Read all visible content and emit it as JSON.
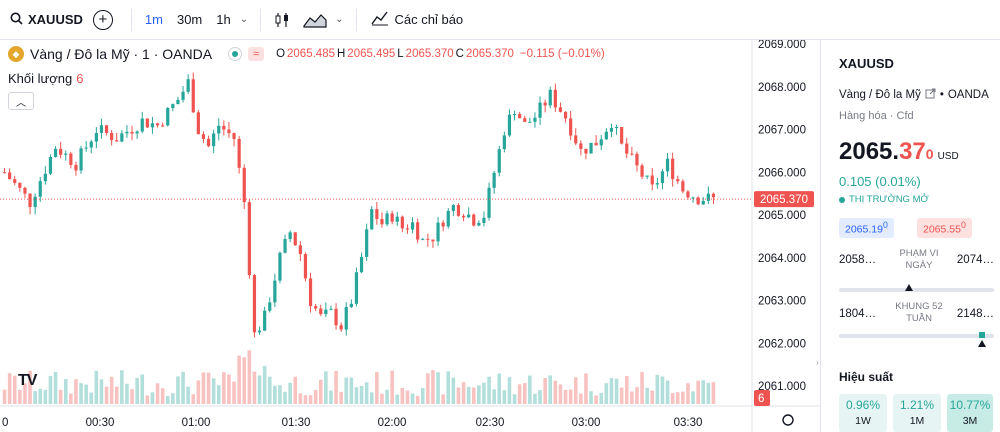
{
  "toolbar": {
    "symbol": "XAUUSD",
    "intervals": [
      "1m",
      "30m",
      "1h"
    ],
    "active_interval": "1m",
    "indicators_label": "Các chỉ báo"
  },
  "legend": {
    "title": "Vàng / Đô la Mỹ · 1 · OANDA",
    "o_key": "O",
    "o_val": "2065.485",
    "h_key": "H",
    "h_val": "2065.495",
    "l_key": "L",
    "l_val": "2065.370",
    "c_key": "C",
    "c_val": "2065.370",
    "change": "−0.115 (−0.01%)",
    "volume_label": "Khối lượng",
    "volume_value": "6"
  },
  "chart_data": {
    "type": "candlestick",
    "y_ticks": [
      "2069.000",
      "2068.000",
      "2067.000",
      "2066.000",
      "2065.000",
      "2064.000",
      "2063.000",
      "2062.000",
      "2061.000"
    ],
    "ylim": [
      2061.0,
      2069.0
    ],
    "x_ticks": [
      "0",
      "00:30",
      "01:00",
      "01:30",
      "02:00",
      "02:30",
      "03:00",
      "03:30"
    ],
    "last_price_label": "2065.370",
    "last_price": 2065.37,
    "volume_label": "6",
    "colors": {
      "up": "#26a69a",
      "down": "#ef5350",
      "up_vol": "#b2dfdb",
      "down_vol": "#f8c2c1"
    },
    "close_path": [
      [
        0,
        2066.0
      ],
      [
        5,
        2065.3
      ],
      [
        10,
        2066.6
      ],
      [
        14,
        2066.2
      ],
      [
        18,
        2067.0
      ],
      [
        22,
        2066.8
      ],
      [
        27,
        2067.2
      ],
      [
        30,
        2067.1
      ],
      [
        34,
        2067.7
      ],
      [
        36,
        2068.1
      ],
      [
        38,
        2067.0
      ],
      [
        40,
        2066.6
      ],
      [
        42,
        2067.1
      ],
      [
        45,
        2066.8
      ],
      [
        47,
        2065.3
      ],
      [
        49,
        2062.2
      ],
      [
        51,
        2062.6
      ],
      [
        54,
        2064.0
      ],
      [
        56,
        2064.6
      ],
      [
        58,
        2064.1
      ],
      [
        60,
        2063.0
      ],
      [
        62,
        2062.6
      ],
      [
        64,
        2062.7
      ],
      [
        66,
        2062.4
      ],
      [
        68,
        2063.0
      ],
      [
        70,
        2064.0
      ],
      [
        72,
        2065.1
      ],
      [
        74,
        2064.8
      ],
      [
        76,
        2065.0
      ],
      [
        78,
        2064.7
      ],
      [
        80,
        2064.8
      ],
      [
        82,
        2064.4
      ],
      [
        84,
        2064.5
      ],
      [
        86,
        2064.9
      ],
      [
        88,
        2065.2
      ],
      [
        90,
        2065.1
      ],
      [
        92,
        2064.9
      ],
      [
        94,
        2065.0
      ],
      [
        96,
        2066.0
      ],
      [
        98,
        2067.0
      ],
      [
        100,
        2067.5
      ],
      [
        102,
        2067.1
      ],
      [
        104,
        2067.3
      ],
      [
        107,
        2067.8
      ],
      [
        110,
        2067.3
      ],
      [
        113,
        2066.5
      ],
      [
        116,
        2066.7
      ],
      [
        119,
        2067.2
      ],
      [
        121,
        2066.6
      ],
      [
        124,
        2066.1
      ],
      [
        127,
        2065.6
      ],
      [
        130,
        2066.2
      ],
      [
        133,
        2065.6
      ],
      [
        136,
        2065.4
      ],
      [
        139,
        2065.37
      ]
    ]
  },
  "panel": {
    "symbol": "XAUUSD",
    "description": "Vàng / Đô la Mỹ",
    "exchange": "OANDA",
    "category": "Hàng hóa",
    "category_sub": "Cfd",
    "price_main": "2065.",
    "price_red": "37",
    "price_sup": "0",
    "currency": "USD",
    "change": "0.105 (0.01%)",
    "market_status": "THỊ TRƯỜNG MỞ",
    "bid": "2065.19",
    "bid_sup": "0",
    "ask": "2065.55",
    "ask_sup": "0",
    "day_range_low": "2058…",
    "day_range_label_1": "PHẠM VI",
    "day_range_label_2": "NGÀY",
    "day_range_high": "2074…",
    "day_range_pos": 0.45,
    "week52_low": "1804…",
    "week52_label_1": "KHUNG 52",
    "week52_label_2": "TUẦN",
    "week52_high": "2148…",
    "week52_pos": 0.92,
    "performance_title": "Hiệu suất",
    "performance": [
      {
        "value": "0.96%",
        "label": "1W"
      },
      {
        "value": "1.21%",
        "label": "1M"
      },
      {
        "value": "10.77%",
        "label": "3M"
      }
    ]
  }
}
